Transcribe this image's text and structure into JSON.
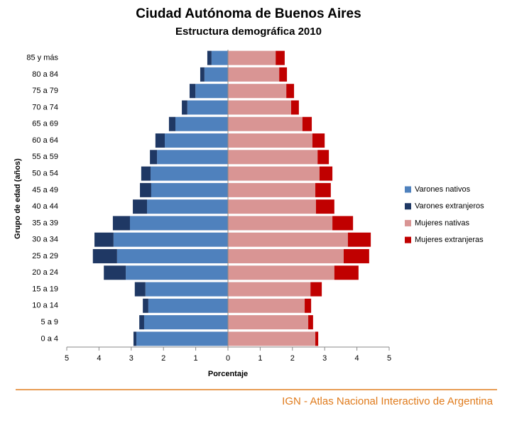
{
  "chart_data": {
    "type": "pyramid",
    "title": "Ciudad Autónoma de Buenos Aires",
    "subtitle": "Estructura demográfica 2010",
    "xlabel": "Porcentaje",
    "ylabel": "Grupo de edad (años)",
    "categories": [
      "0 a 4",
      "5 a 9",
      "10 a 14",
      "15 a 19",
      "20 a 24",
      "25 a 29",
      "30 a 34",
      "35 a 39",
      "40 a 44",
      "45 a 49",
      "50 a 54",
      "55 a 59",
      "60 a 64",
      "65 a 69",
      "70 a 74",
      "75 a 79",
      "80 a 84",
      "85 y más"
    ],
    "series": [
      {
        "name": "Varones nativos",
        "color": "#4f81bd",
        "values": [
          -2.84,
          -2.6,
          -2.47,
          -2.56,
          -3.17,
          -3.44,
          -3.55,
          -3.04,
          -2.51,
          -2.38,
          -2.4,
          -2.2,
          -1.96,
          -1.63,
          -1.26,
          -1.01,
          -0.73,
          -0.51
        ]
      },
      {
        "name": "Varones extranjeros",
        "color": "#1f3864",
        "values": [
          -0.09,
          -0.15,
          -0.17,
          -0.33,
          -0.68,
          -0.75,
          -0.59,
          -0.53,
          -0.44,
          -0.35,
          -0.29,
          -0.22,
          -0.29,
          -0.2,
          -0.17,
          -0.18,
          -0.13,
          -0.13
        ]
      },
      {
        "name": "Mujeres nativas",
        "color": "#d99594",
        "values": [
          2.71,
          2.49,
          2.38,
          2.56,
          3.3,
          3.59,
          3.72,
          3.24,
          2.73,
          2.71,
          2.84,
          2.78,
          2.62,
          2.31,
          1.96,
          1.81,
          1.59,
          1.48
        ]
      },
      {
        "name": "Mujeres extranjeras",
        "color": "#c00000",
        "values": [
          0.09,
          0.15,
          0.2,
          0.35,
          0.75,
          0.79,
          0.71,
          0.64,
          0.57,
          0.48,
          0.4,
          0.35,
          0.38,
          0.29,
          0.24,
          0.24,
          0.24,
          0.28
        ]
      }
    ],
    "xlim": [
      -5,
      5
    ],
    "xticks": [
      {
        "value": -5,
        "label": "5"
      },
      {
        "value": -4,
        "label": "4"
      },
      {
        "value": -3,
        "label": "3"
      },
      {
        "value": -2,
        "label": "2"
      },
      {
        "value": -1,
        "label": "1"
      },
      0,
      1,
      2,
      3,
      4,
      5
    ],
    "legend": "right",
    "grid": false
  },
  "footer": "IGN - Atlas Nacional Interactivo de Argentina"
}
